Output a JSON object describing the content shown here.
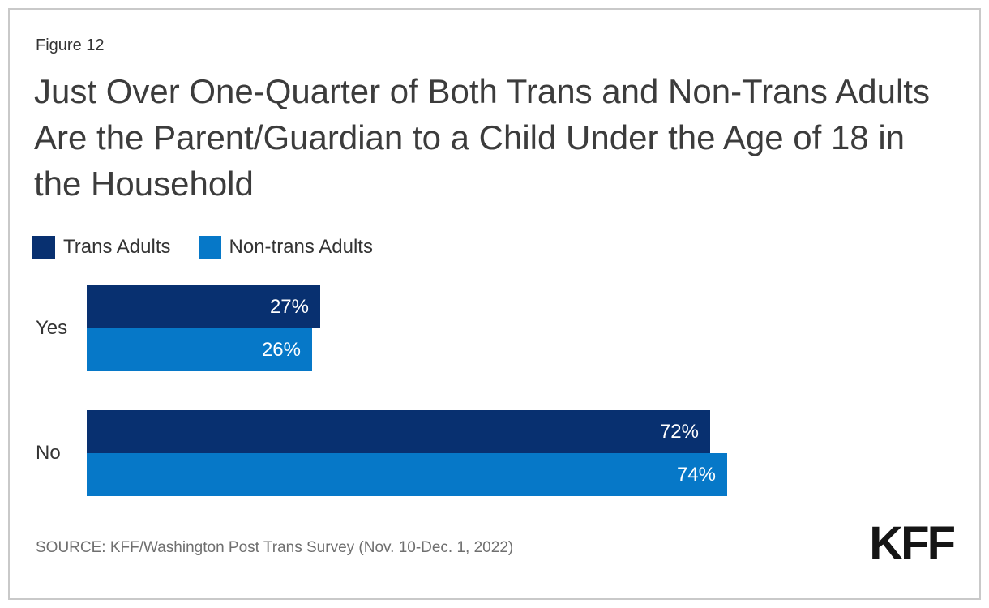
{
  "figure_label": "Figure 12",
  "title": "Just Over One-Quarter of Both Trans and Non-Trans Adults Are the Parent/Guardian to a Child Under the Age of 18 in the Household",
  "legend": {
    "items": [
      {
        "label": "Trans Adults",
        "color": "#083070"
      },
      {
        "label": "Non-trans Adults",
        "color": "#0678c8"
      }
    ]
  },
  "chart_data": {
    "type": "bar",
    "orientation": "horizontal",
    "title": "Just Over One-Quarter of Both Trans and Non-Trans Adults Are the Parent/Guardian to a Child Under the Age of 18 in the Household",
    "categories": [
      "Yes",
      "No"
    ],
    "series": [
      {
        "name": "Trans Adults",
        "color": "#083070",
        "values": [
          27,
          72
        ]
      },
      {
        "name": "Non-trans Adults",
        "color": "#0678c8",
        "values": [
          26,
          74
        ]
      }
    ],
    "value_suffix": "%",
    "xlim": [
      0,
      100
    ],
    "grid": false,
    "axis_labels": false,
    "legend_position": "top-left",
    "data_labels": "inside-end"
  },
  "source": "SOURCE: KFF/Washington Post Trans Survey (Nov. 10-Dec. 1, 2022)",
  "logo_text": "KFF",
  "colors": {
    "trans_adults": "#083070",
    "non_trans_adults": "#0678c8",
    "title_text": "#3c3c3c",
    "body_text": "#333333",
    "source_text": "#6f6f6f",
    "frame_border": "#c9c9c9",
    "background": "#ffffff",
    "value_label": "#ffffff"
  }
}
